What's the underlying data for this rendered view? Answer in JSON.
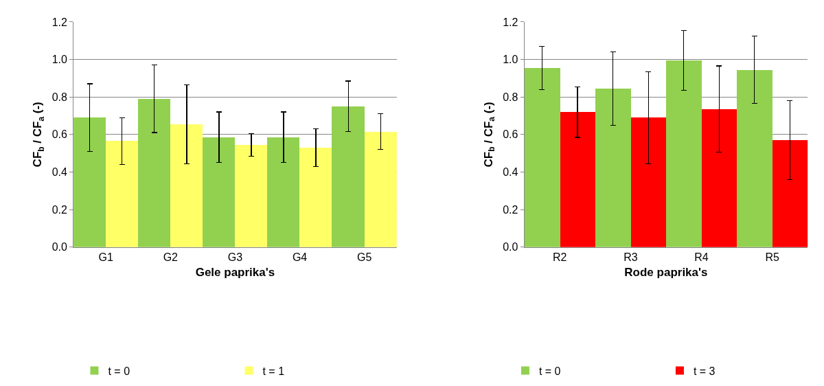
{
  "chart_data": [
    {
      "type": "bar",
      "xlabel": "Gele paprika's",
      "ylabel": "CF$_{b}$ / CF$_{a}$ (-)",
      "categories": [
        "G1",
        "G2",
        "G3",
        "G4",
        "G5"
      ],
      "ylim": [
        0,
        1.2
      ],
      "yticks": [
        {
          "value": 0,
          "label": "0.0"
        },
        {
          "value": 0.2,
          "label": "0.2"
        },
        {
          "value": 0.4,
          "label": "0.4"
        },
        {
          "value": 0.6,
          "label": "0.6"
        },
        {
          "value": 0.8,
          "label": "0.8"
        },
        {
          "value": 1,
          "label": "1.0"
        },
        {
          "value": 1.2,
          "label": "1.2"
        }
      ],
      "grid": "y",
      "legend": "bottom",
      "series": [
        {
          "name": "t = 0",
          "color": "#92d050",
          "values": [
            0.69,
            0.79,
            0.585,
            0.585,
            0.75
          ],
          "errors": [
            0.18,
            0.18,
            0.135,
            0.135,
            0.135
          ]
        },
        {
          "name": "t = 1",
          "color": "#ffff66",
          "values": [
            0.565,
            0.655,
            0.545,
            0.53,
            0.615
          ],
          "errors": [
            0.125,
            0.21,
            0.06,
            0.1,
            0.095
          ]
        }
      ]
    },
    {
      "type": "bar",
      "xlabel": "Rode paprika's",
      "ylabel": "CF$_{b}$ / CF$_{a}$ (-)",
      "categories": [
        "R2",
        "R3",
        "R4",
        "R5"
      ],
      "ylim": [
        0,
        1.2
      ],
      "yticks": [
        {
          "value": 0,
          "label": "0.0"
        },
        {
          "value": 0.2,
          "label": "0.2"
        },
        {
          "value": 0.4,
          "label": "0.4"
        },
        {
          "value": 0.6,
          "label": "0.6"
        },
        {
          "value": 0.8,
          "label": "0.8"
        },
        {
          "value": 1,
          "label": "1.0"
        },
        {
          "value": 1.2,
          "label": "1.2"
        }
      ],
      "grid": "y",
      "legend": "bottom",
      "series": [
        {
          "name": "t = 0",
          "color": "#92d050",
          "values": [
            0.955,
            0.845,
            0.995,
            0.945
          ],
          "errors": [
            0.115,
            0.195,
            0.16,
            0.18
          ]
        },
        {
          "name": "t = 3",
          "color": "#ff0000",
          "values": [
            0.72,
            0.69,
            0.735,
            0.57
          ],
          "errors": [
            0.135,
            0.245,
            0.23,
            0.21
          ]
        }
      ]
    }
  ]
}
